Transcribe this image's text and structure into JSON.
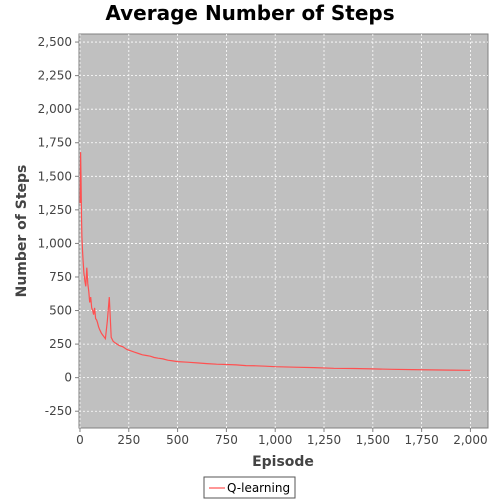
{
  "chart_data": {
    "type": "line",
    "title": "Average Number of Steps",
    "xlabel": "Episode",
    "ylabel": "Number of Steps",
    "xlim": [
      -5,
      2090
    ],
    "ylim": [
      -375,
      2560
    ],
    "xticks": [
      0,
      250,
      500,
      750,
      1000,
      1250,
      1500,
      1750,
      2000
    ],
    "xtick_labels": [
      "0",
      "250",
      "500",
      "750",
      "1,000",
      "1,250",
      "1,500",
      "1,750",
      "2,000"
    ],
    "yticks": [
      -250,
      0,
      250,
      500,
      750,
      1000,
      1250,
      1500,
      1750,
      2000,
      2250,
      2500
    ],
    "ytick_labels": [
      "-250",
      "0",
      "250",
      "500",
      "750",
      "1,000",
      "1,250",
      "1,500",
      "1,750",
      "2,000",
      "2,250",
      "2,500"
    ],
    "grid": true,
    "legend": "bottom-center",
    "series": [
      {
        "name": "Q-learning",
        "color": "#ff5050",
        "x": [
          1,
          3,
          5,
          8,
          10,
          13,
          16,
          20,
          25,
          30,
          35,
          40,
          45,
          50,
          55,
          60,
          65,
          70,
          75,
          80,
          85,
          90,
          95,
          100,
          110,
          120,
          130,
          140,
          150,
          160,
          170,
          180,
          190,
          200,
          220,
          240,
          260,
          280,
          300,
          320,
          340,
          360,
          380,
          400,
          425,
          450,
          475,
          500,
          550,
          600,
          650,
          700,
          750,
          800,
          850,
          900,
          950,
          1000,
          1100,
          1200,
          1300,
          1400,
          1500,
          1600,
          1700,
          1800,
          1900,
          2000
        ],
        "values": [
          1300,
          1680,
          1500,
          1200,
          1050,
          950,
          870,
          780,
          720,
          680,
          820,
          700,
          640,
          560,
          600,
          520,
          500,
          470,
          520,
          440,
          430,
          410,
          380,
          360,
          330,
          310,
          290,
          420,
          600,
          300,
          270,
          260,
          250,
          240,
          230,
          210,
          200,
          190,
          180,
          170,
          165,
          160,
          150,
          145,
          140,
          130,
          125,
          120,
          115,
          110,
          105,
          100,
          98,
          95,
          90,
          88,
          85,
          82,
          78,
          75,
          70,
          68,
          65,
          62,
          60,
          58,
          56,
          55
        ]
      }
    ]
  }
}
